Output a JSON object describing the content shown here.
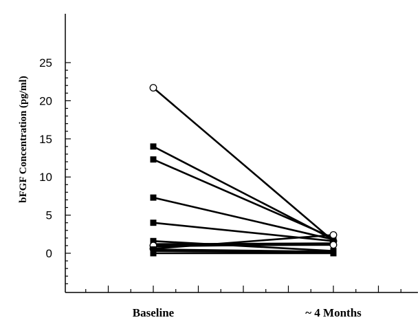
{
  "chart_data": {
    "type": "line",
    "title": "",
    "xlabel": "",
    "ylabel": "bFGF Concentration (pg/ml)",
    "categories": [
      "Baseline",
      "~ 4 Months"
    ],
    "ylim": [
      -4,
      25
    ],
    "y_ticks": [
      0,
      5,
      10,
      15,
      20,
      25
    ],
    "grid": false,
    "legend": "none",
    "series": [
      {
        "marker": "open-circle",
        "values": [
          21.7,
          1.6
        ]
      },
      {
        "marker": "filled-square",
        "values": [
          14.0,
          1.8
        ]
      },
      {
        "marker": "filled-square",
        "values": [
          12.3,
          2.0
        ]
      },
      {
        "marker": "filled-square",
        "values": [
          7.3,
          1.8
        ]
      },
      {
        "marker": "filled-square",
        "values": [
          4.0,
          1.6
        ]
      },
      {
        "marker": "filled-square",
        "values": [
          1.6,
          0.3
        ]
      },
      {
        "marker": "filled-square",
        "values": [
          1.2,
          1.3
        ]
      },
      {
        "marker": "open-circle",
        "values": [
          0.6,
          2.4
        ]
      },
      {
        "marker": "filled-square",
        "values": [
          0.9,
          1.2
        ]
      },
      {
        "marker": "open-circle",
        "values": [
          1.0,
          1.1
        ]
      },
      {
        "marker": "filled-square",
        "values": [
          0.5,
          0.2
        ]
      },
      {
        "marker": "filled-square",
        "values": [
          0.3,
          0.1
        ]
      },
      {
        "marker": "filled-square",
        "values": [
          0.0,
          0.0
        ]
      }
    ],
    "colors": {
      "line": "#000000",
      "marker_fill": "#000000",
      "open_marker_fill": "#ffffff"
    }
  }
}
